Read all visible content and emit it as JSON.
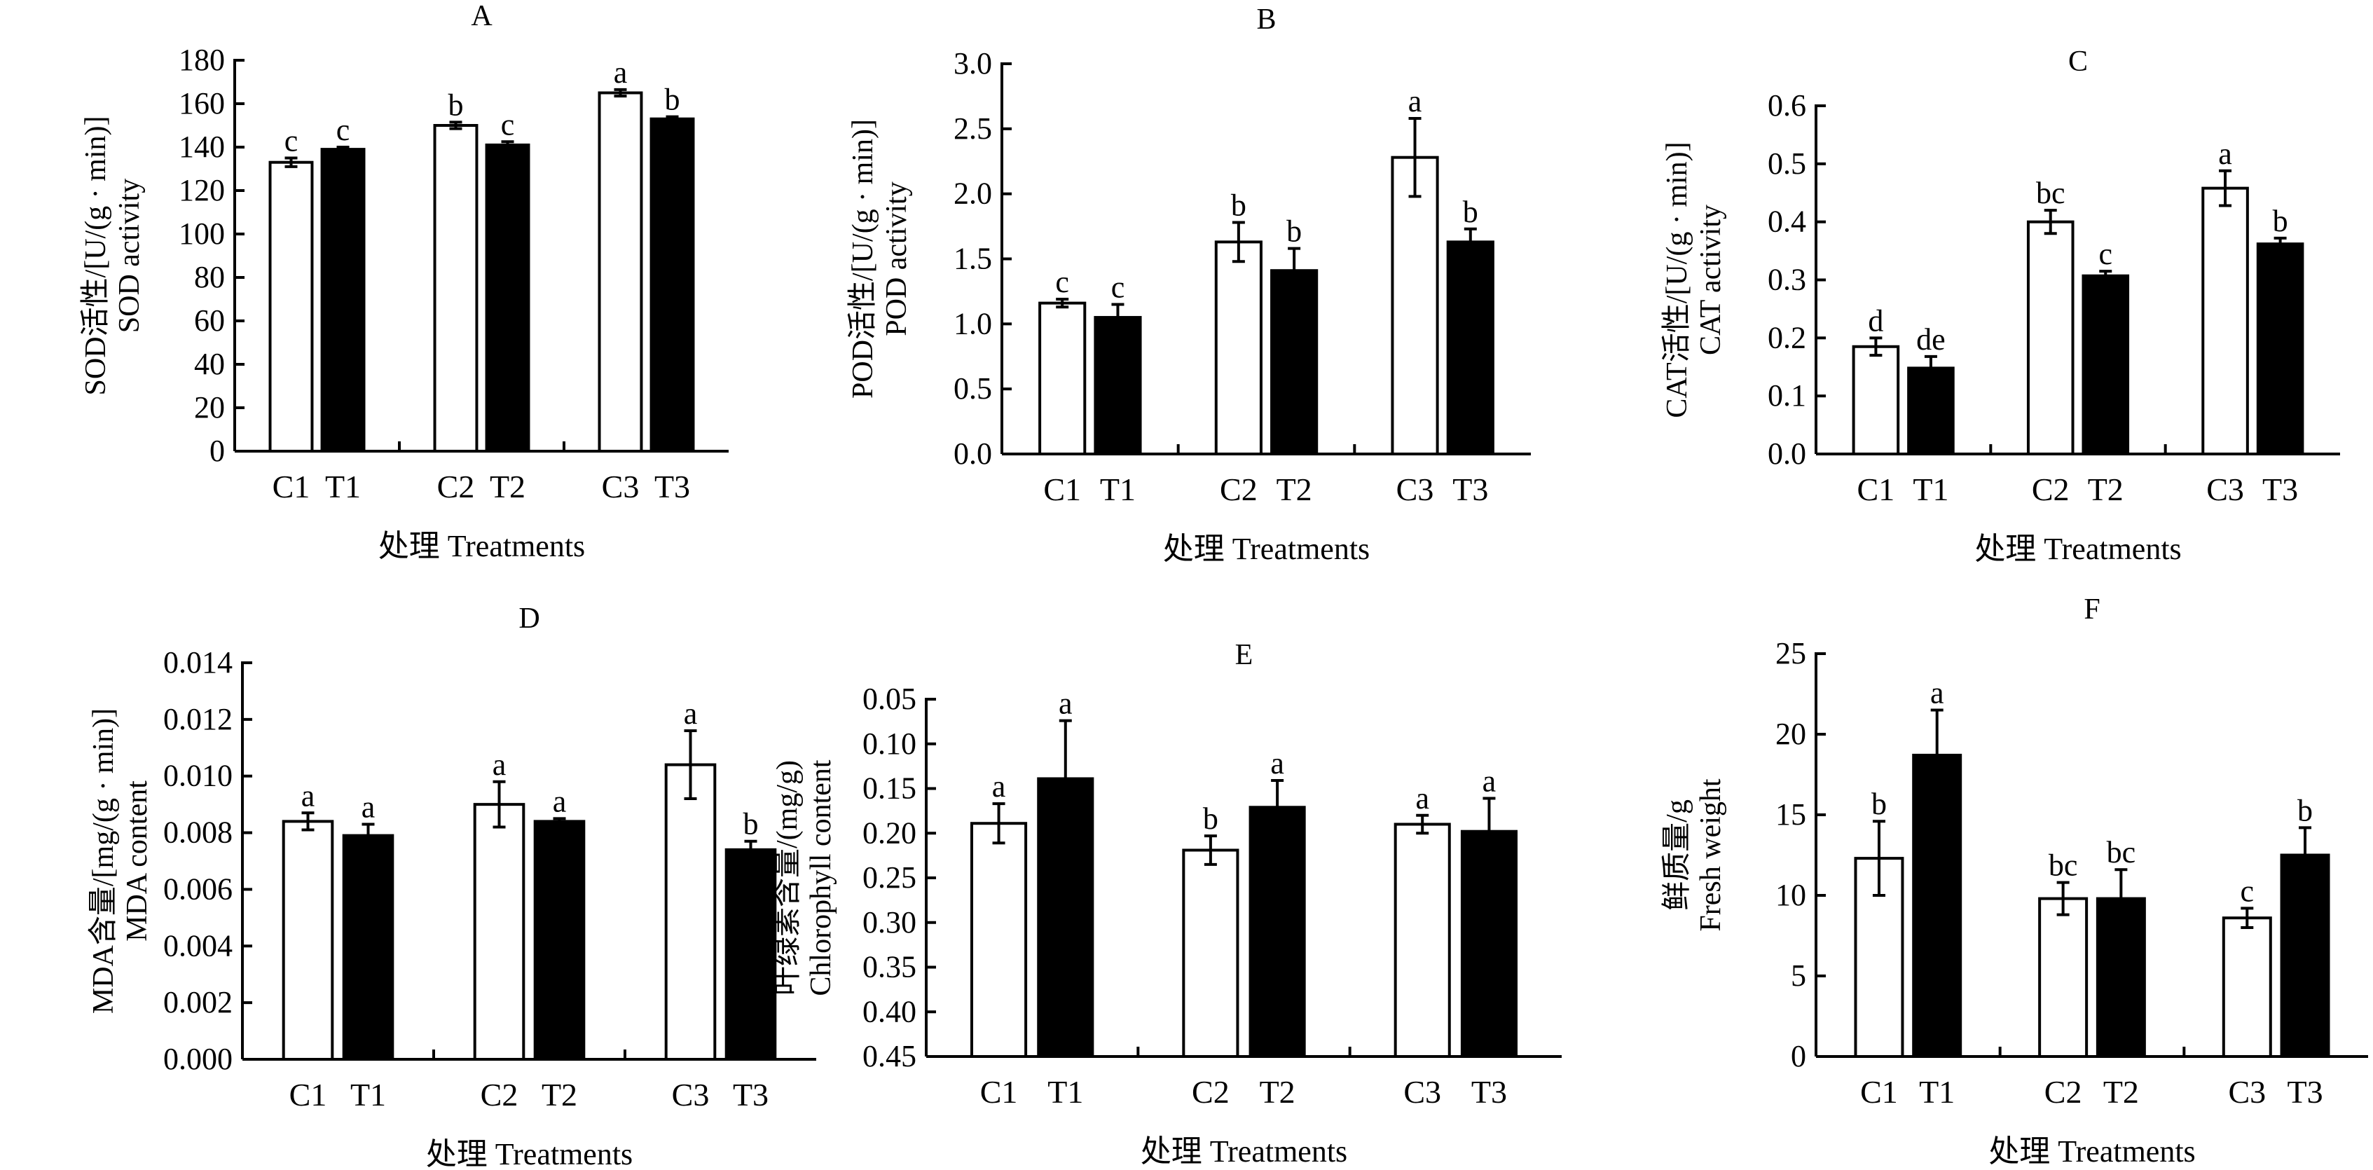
{
  "chart_data": [
    {
      "type": "bar",
      "title": "A",
      "ylabel": [
        "SOD活性/[U/(g · min)]",
        "SOD activity"
      ],
      "xlabel": "处理  Treatments",
      "categories": [
        "C1",
        "T1",
        "C2",
        "T2",
        "C3",
        "T3"
      ],
      "ylim": [
        0,
        180
      ],
      "ticks": [
        "0",
        "20",
        "40",
        "60",
        "80",
        "100",
        "120",
        "140",
        "160",
        "180"
      ],
      "inverted": false,
      "values": [
        133,
        139,
        150,
        141,
        165,
        153
      ],
      "errors": [
        2,
        1,
        1.5,
        1.5,
        1.5,
        1
      ],
      "letters": [
        "c",
        "c",
        "b",
        "c",
        "a",
        "b"
      ]
    },
    {
      "type": "bar",
      "title": "B",
      "ylabel": [
        "POD活性/[U/(g · min)]",
        "POD activity"
      ],
      "xlabel": "处理  Treatments",
      "categories": [
        "C1",
        "T1",
        "C2",
        "T2",
        "C3",
        "T3"
      ],
      "ylim": [
        0,
        3
      ],
      "ticks": [
        "0.0",
        "0.5",
        "1.0",
        "1.5",
        "2.0",
        "2.5",
        "3.0"
      ],
      "inverted": false,
      "values": [
        1.16,
        1.05,
        1.63,
        1.41,
        2.28,
        1.63
      ],
      "errors": [
        0.03,
        0.1,
        0.15,
        0.17,
        0.3,
        0.1
      ],
      "letters": [
        "c",
        "c",
        "b",
        "b",
        "a",
        "b"
      ]
    },
    {
      "type": "bar",
      "title": "C",
      "ylabel": [
        "CAT活性/[U/(g · min)]",
        "CAT activity"
      ],
      "xlabel": "处理  Treatments",
      "categories": [
        "C1",
        "T1",
        "C2",
        "T2",
        "C3",
        "T3"
      ],
      "ylim": [
        0,
        0.6
      ],
      "ticks": [
        "0.0",
        "0.1",
        "0.2",
        "0.3",
        "0.4",
        "0.5",
        "0.6"
      ],
      "inverted": false,
      "values": [
        0.185,
        0.148,
        0.4,
        0.307,
        0.458,
        0.362
      ],
      "errors": [
        0.015,
        0.02,
        0.02,
        0.008,
        0.03,
        0.01
      ],
      "letters": [
        "d",
        "de",
        "bc",
        "c",
        "a",
        "b"
      ]
    },
    {
      "type": "bar",
      "title": "D",
      "ylabel": [
        "MDA含量/[mg/(g · min)]",
        "MDA content"
      ],
      "xlabel": "处理  Treatments",
      "categories": [
        "C1",
        "T1",
        "C2",
        "T2",
        "C3",
        "T3"
      ],
      "ylim": [
        0,
        0.014
      ],
      "ticks": [
        "0.000",
        "0.002",
        "0.004",
        "0.006",
        "0.008",
        "0.010",
        "0.012",
        "0.014"
      ],
      "inverted": false,
      "values": [
        0.0084,
        0.0079,
        0.009,
        0.0084,
        0.0104,
        0.0074
      ],
      "errors": [
        0.0003,
        0.0004,
        0.0008,
        0.0001,
        0.0012,
        0.0003
      ],
      "letters": [
        "a",
        "a",
        "a",
        "a",
        "a",
        "b"
      ]
    },
    {
      "type": "bar",
      "title": "E",
      "ylabel": [
        "叶绿素含量/(mg/g)",
        "Chlorophyll content"
      ],
      "xlabel": "处理  Treatments",
      "categories": [
        "C1",
        "T1",
        "C2",
        "T2",
        "C3",
        "T3"
      ],
      "ylim": [
        0.05,
        0.45
      ],
      "ticks": [
        "0.05",
        "0.10",
        "0.15",
        "0.20",
        "0.25",
        "0.30",
        "0.35",
        "0.40",
        "0.45"
      ],
      "inverted": true,
      "values": [
        0.189,
        0.139,
        0.219,
        0.171,
        0.19,
        0.198
      ],
      "errors": [
        0.022,
        0.065,
        0.016,
        0.03,
        0.01,
        0.037
      ],
      "letters": [
        "a",
        "a",
        "b",
        "a",
        "a",
        "a"
      ]
    },
    {
      "type": "bar",
      "title": "F",
      "ylabel": [
        "鲜质量/g",
        "Fresh weight"
      ],
      "xlabel": "处理  Treatments",
      "categories": [
        "C1",
        "T1",
        "C2",
        "T2",
        "C3",
        "T3"
      ],
      "ylim": [
        0,
        25
      ],
      "ticks": [
        "0",
        "5",
        "10",
        "15",
        "20",
        "25"
      ],
      "inverted": false,
      "values": [
        12.3,
        18.7,
        9.8,
        9.8,
        8.6,
        12.5
      ],
      "errors": [
        2.3,
        2.8,
        1.0,
        1.8,
        0.6,
        1.7
      ],
      "letters": [
        "b",
        "a",
        "bc",
        "bc",
        "c",
        "b"
      ]
    }
  ],
  "colors": {
    "control": "#ffffff",
    "treatment": "#000000",
    "stroke": "#000000"
  }
}
